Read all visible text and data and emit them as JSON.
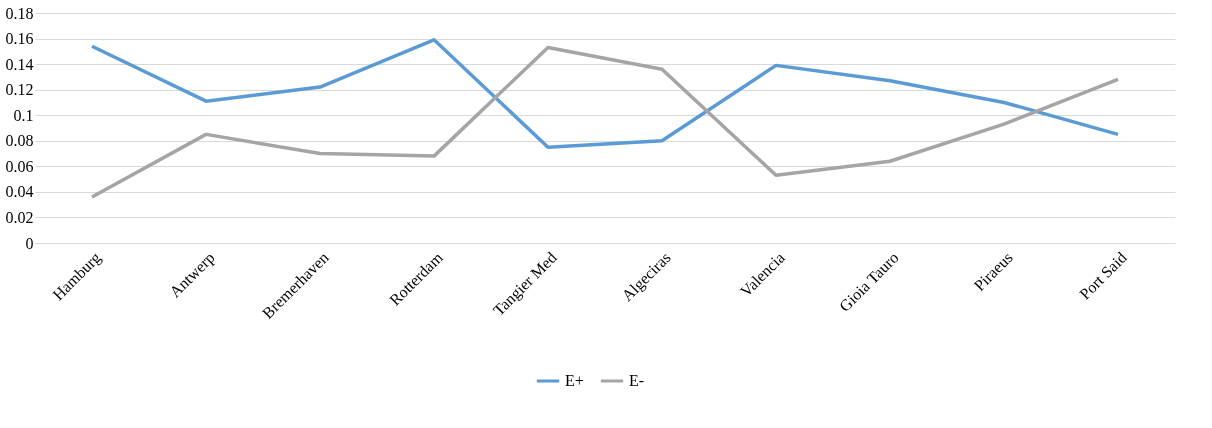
{
  "chart_data": {
    "type": "line",
    "categories": [
      "Hamburg",
      "Antwerp",
      "Bremerhaven",
      "Rotterdam",
      "Tangier Med",
      "Algeciras",
      "Valencia",
      "Gioia Tauro",
      "Piraeus",
      "Port Said"
    ],
    "series": [
      {
        "name": "E+",
        "color": "#5b9bd5",
        "values": [
          0.154,
          0.111,
          0.122,
          0.159,
          0.075,
          0.08,
          0.139,
          0.127,
          0.11,
          0.085
        ]
      },
      {
        "name": "E-",
        "color": "#a5a5a5",
        "values": [
          0.036,
          0.085,
          0.07,
          0.068,
          0.153,
          0.136,
          0.053,
          0.064,
          0.093,
          0.128
        ]
      }
    ],
    "ylim": [
      0,
      0.18
    ],
    "yticks": [
      0,
      0.02,
      0.04,
      0.06,
      0.08,
      0.1,
      0.12,
      0.14,
      0.16,
      0.18
    ],
    "grid": "y",
    "legend": "bottom",
    "marker": "none",
    "line_style": "solid"
  }
}
